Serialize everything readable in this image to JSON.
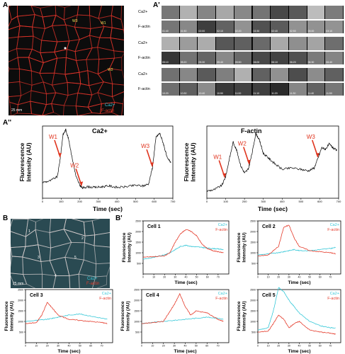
{
  "panels": {
    "A": {
      "letter": "A",
      "w_labels": [
        "W3",
        "W1",
        "W2"
      ],
      "scale": "25 mm",
      "legend_ca": "Ca2+",
      "legend_factin": "F-actin"
    },
    "A1": {
      "letter": "A'",
      "rows": [
        "Ca2+",
        "F-actin",
        "Ca2+",
        "F-actin",
        "Ca2+",
        "F-actin"
      ],
      "timestamps": [
        [
          "01:40",
          "01:50",
          "02:00",
          "02:10",
          "02:20",
          "02:30",
          "02:40",
          "02:50",
          "03:00",
          "03:10"
        ],
        [
          "05:10",
          "05:20",
          "05:30",
          "05:40",
          "05:50",
          "06:00",
          "06:10",
          "06:20",
          "06:30",
          "06:40"
        ],
        [
          "10:20",
          "10:30",
          "10:40",
          "10:50",
          "11:00",
          "11:10",
          "11:20",
          "11:30",
          "11:40",
          "11:50"
        ]
      ]
    },
    "A2": {
      "letter": "A''"
    },
    "B": {
      "letter": "B",
      "scale": "25 mm",
      "legend_ca": "Ca2+",
      "legend_factin": "F-actin",
      "cell_numbers": [
        "1",
        "2",
        "3",
        "4",
        "5"
      ]
    },
    "B1": {
      "letter": "B'"
    }
  },
  "chart_data": [
    {
      "id": "ca_trace",
      "type": "line",
      "title": "Ca2+",
      "xlabel": "Time (sec)",
      "ylabel": "Fluorescence Intensity (AU)",
      "xlim": [
        0,
        700
      ],
      "xticks": [
        0,
        100,
        200,
        300,
        400,
        500,
        600,
        700
      ],
      "annotations": [
        {
          "label": "W1",
          "x": 95
        },
        {
          "label": "W2",
          "x": 210
        },
        {
          "label": "W3",
          "x": 590
        }
      ],
      "series": [
        {
          "x": [
            0,
            40,
            80,
            95,
            110,
            125,
            140,
            160,
            180,
            200,
            215,
            240,
            280,
            320,
            360,
            400,
            450,
            500,
            540,
            570,
            590,
            610,
            630,
            650,
            670,
            690
          ],
          "y": [
            0.22,
            0.24,
            0.3,
            0.55,
            0.88,
            0.95,
            0.82,
            0.55,
            0.3,
            0.18,
            0.14,
            0.16,
            0.15,
            0.16,
            0.17,
            0.15,
            0.16,
            0.18,
            0.17,
            0.2,
            0.42,
            0.85,
            0.9,
            0.75,
            0.55,
            0.5
          ]
        }
      ]
    },
    {
      "id": "factin_trace",
      "type": "line",
      "title": "F-actin",
      "xlabel": "Time (sec)",
      "ylabel": "Fluorescence Intensity (AU)",
      "xlim": [
        0,
        700
      ],
      "xticks": [
        0,
        100,
        200,
        300,
        400,
        500,
        600,
        700
      ],
      "annotations": [
        {
          "label": "W1",
          "x": 95
        },
        {
          "label": "W2",
          "x": 225
        },
        {
          "label": "W3",
          "x": 590
        }
      ],
      "series": [
        {
          "x": [
            0,
            40,
            80,
            100,
            120,
            140,
            160,
            180,
            200,
            220,
            240,
            260,
            280,
            300,
            330,
            360,
            400,
            450,
            500,
            540,
            570,
            590,
            610,
            630,
            650,
            670,
            690
          ],
          "y": [
            0.1,
            0.12,
            0.18,
            0.3,
            0.55,
            0.78,
            0.65,
            0.45,
            0.35,
            0.4,
            0.62,
            0.9,
            0.8,
            0.62,
            0.55,
            0.48,
            0.4,
            0.42,
            0.4,
            0.38,
            0.42,
            0.55,
            0.7,
            0.68,
            0.75,
            0.7,
            0.66
          ]
        }
      ]
    },
    {
      "id": "cell1",
      "type": "line",
      "title": "Cell 1",
      "xlabel": "Time (sec)",
      "ylabel": "Fluorescence Intensity (AU)",
      "xlim": [
        0,
        80
      ],
      "ylim": [
        0,
        2500
      ],
      "xticks": [
        0,
        10,
        20,
        30,
        40,
        50,
        60,
        70
      ],
      "yticks": [
        500,
        1000,
        1500,
        2000,
        2500
      ],
      "series": [
        {
          "name": "Ca2+",
          "color": "#37c8d8",
          "x": [
            0,
            10,
            20,
            25,
            30,
            35,
            40,
            45,
            50,
            55,
            60,
            65,
            70,
            75
          ],
          "y": [
            700,
            780,
            900,
            1000,
            1150,
            1300,
            1350,
            1300,
            1280,
            1250,
            1220,
            1200,
            1180,
            1150
          ]
        },
        {
          "name": "F-actin",
          "color": "#e43a2a",
          "x": [
            0,
            10,
            20,
            25,
            30,
            35,
            40,
            45,
            50,
            55,
            60,
            65,
            70,
            75
          ],
          "y": [
            800,
            820,
            850,
            1000,
            1500,
            1900,
            2100,
            2000,
            1800,
            1400,
            1200,
            1100,
            1050,
            1000
          ]
        }
      ]
    },
    {
      "id": "cell2",
      "type": "line",
      "title": "Cell 2",
      "xlabel": "Time (sec)",
      "ylabel": "Fluorescence Intensity (AU)",
      "xlim": [
        0,
        80
      ],
      "ylim": [
        0,
        2500
      ],
      "xticks": [
        0,
        10,
        20,
        30,
        40,
        50,
        60,
        70
      ],
      "yticks": [
        500,
        1000,
        1500,
        2000,
        2500
      ],
      "series": [
        {
          "name": "Ca2+",
          "color": "#37c8d8",
          "x": [
            0,
            10,
            20,
            25,
            30,
            35,
            40,
            50,
            60,
            70,
            75
          ],
          "y": [
            900,
            950,
            1000,
            1050,
            1100,
            1150,
            1100,
            1100,
            1150,
            1200,
            1250
          ]
        },
        {
          "name": "F-actin",
          "color": "#e43a2a",
          "x": [
            0,
            10,
            20,
            25,
            30,
            35,
            40,
            50,
            60,
            70,
            75
          ],
          "y": [
            850,
            900,
            1300,
            2200,
            2300,
            1700,
            1300,
            1100,
            1050,
            1000,
            950
          ]
        }
      ]
    },
    {
      "id": "cell3",
      "type": "line",
      "title": "Cell 3",
      "xlabel": "Time (sec)",
      "ylabel": "Fluorescence Intensity (AU)",
      "xlim": [
        0,
        80
      ],
      "ylim": [
        0,
        2500
      ],
      "xticks": [
        0,
        10,
        20,
        30,
        40,
        50,
        60,
        70
      ],
      "yticks": [
        500,
        1000,
        1500,
        2000,
        2500
      ],
      "series": [
        {
          "name": "Ca2+",
          "color": "#37c8d8",
          "x": [
            0,
            10,
            20,
            25,
            30,
            40,
            50,
            60,
            70,
            75
          ],
          "y": [
            1000,
            1050,
            1100,
            1150,
            1200,
            1300,
            1350,
            1250,
            1150,
            1100
          ]
        },
        {
          "name": "F-actin",
          "color": "#e43a2a",
          "x": [
            0,
            10,
            15,
            20,
            25,
            30,
            40,
            50,
            60,
            70,
            75
          ],
          "y": [
            900,
            950,
            1300,
            1900,
            1600,
            1300,
            1100,
            1050,
            1000,
            950,
            900
          ]
        }
      ]
    },
    {
      "id": "cell4",
      "type": "line",
      "title": "Cell 4",
      "xlabel": "Time (sec)",
      "ylabel": "Fluorescence Intensity (AU)",
      "xlim": [
        0,
        80
      ],
      "ylim": [
        0,
        2500
      ],
      "xticks": [
        0,
        10,
        20,
        30,
        40,
        50,
        60,
        70
      ],
      "yticks": [
        500,
        1000,
        1500,
        2000,
        2500
      ],
      "series": [
        {
          "name": "Ca2+",
          "color": "#37c8d8",
          "x": [
            0,
            10,
            20,
            30,
            40,
            50,
            60,
            70,
            75
          ],
          "y": [
            900,
            950,
            1000,
            1050,
            1100,
            1150,
            1200,
            1150,
            1100
          ]
        },
        {
          "name": "F-actin",
          "color": "#e43a2a",
          "x": [
            0,
            10,
            20,
            25,
            30,
            35,
            40,
            45,
            50,
            60,
            70,
            75
          ],
          "y": [
            900,
            950,
            1000,
            1400,
            1800,
            2300,
            1700,
            1300,
            1500,
            1400,
            1100,
            1000
          ]
        }
      ]
    },
    {
      "id": "cell5",
      "type": "line",
      "title": "Cell 5",
      "xlabel": "Time (sec)",
      "ylabel": "Fluorescence Intensity (AU)",
      "xlim": [
        0,
        80
      ],
      "ylim": [
        0,
        2500
      ],
      "xticks": [
        0,
        10,
        20,
        30,
        40,
        50,
        60,
        70
      ],
      "yticks": [
        500,
        1000,
        1500,
        2000,
        2500
      ],
      "series": [
        {
          "name": "Ca2+",
          "color": "#37c8d8",
          "x": [
            0,
            10,
            15,
            20,
            25,
            30,
            35,
            40,
            50,
            60,
            70,
            75
          ],
          "y": [
            600,
            700,
            1500,
            2600,
            2400,
            2000,
            1700,
            1400,
            1000,
            800,
            700,
            700
          ]
        },
        {
          "name": "F-actin",
          "color": "#e43a2a",
          "x": [
            0,
            10,
            15,
            20,
            25,
            30,
            35,
            40,
            50,
            60,
            70,
            75
          ],
          "y": [
            500,
            550,
            900,
            1300,
            1100,
            700,
            900,
            1000,
            600,
            500,
            450,
            400
          ]
        }
      ]
    }
  ]
}
